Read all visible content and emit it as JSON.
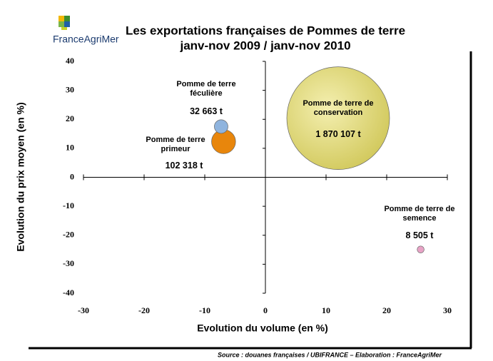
{
  "logo": "FranceAgriMer",
  "source": "Source : douanes françaises / UBIFRANCE – Elaboration : FranceAgriMer",
  "chart_data": {
    "type": "bubble",
    "title": "Les exportations françaises de Pommes de terre",
    "subtitle": "janv-nov 2009 / janv-nov 2010",
    "x_label": "Evolution du volume (en %)",
    "y_label": "Evolution du prix moyen (en %)",
    "xlim": [
      -30,
      30
    ],
    "xticks": [
      -30,
      -20,
      -10,
      0,
      10,
      20,
      30
    ],
    "ylim": [
      -40,
      40
    ],
    "yticks": [
      -40,
      -30,
      -20,
      -10,
      0,
      10,
      20,
      30,
      40
    ],
    "series": [
      {
        "name": "Pomme de terre féculière",
        "color": "#8fb4de",
        "x": [
          -7.3
        ],
        "values": [
          17.5
        ],
        "sizes": [
          32663
        ],
        "size_labels": [
          "32 663 t"
        ]
      },
      {
        "name": "Pomme de terre primeur",
        "color": "#e8860c",
        "x": [
          -6.9
        ],
        "values": [
          12.3
        ],
        "sizes": [
          102318
        ],
        "size_labels": [
          "102 318 t"
        ]
      },
      {
        "name": "Pomme de terre de conservation",
        "color": "#e6de78",
        "x": [
          12
        ],
        "values": [
          20.4
        ],
        "sizes": [
          1870107
        ],
        "size_labels": [
          "1 870 107 t"
        ]
      },
      {
        "name": "Pomme de terre de semence",
        "color": "#e8a3c6",
        "x": [
          25.6
        ],
        "values": [
          -24.9
        ],
        "sizes": [
          8505
        ],
        "size_labels": [
          "8 505 t"
        ]
      }
    ]
  }
}
